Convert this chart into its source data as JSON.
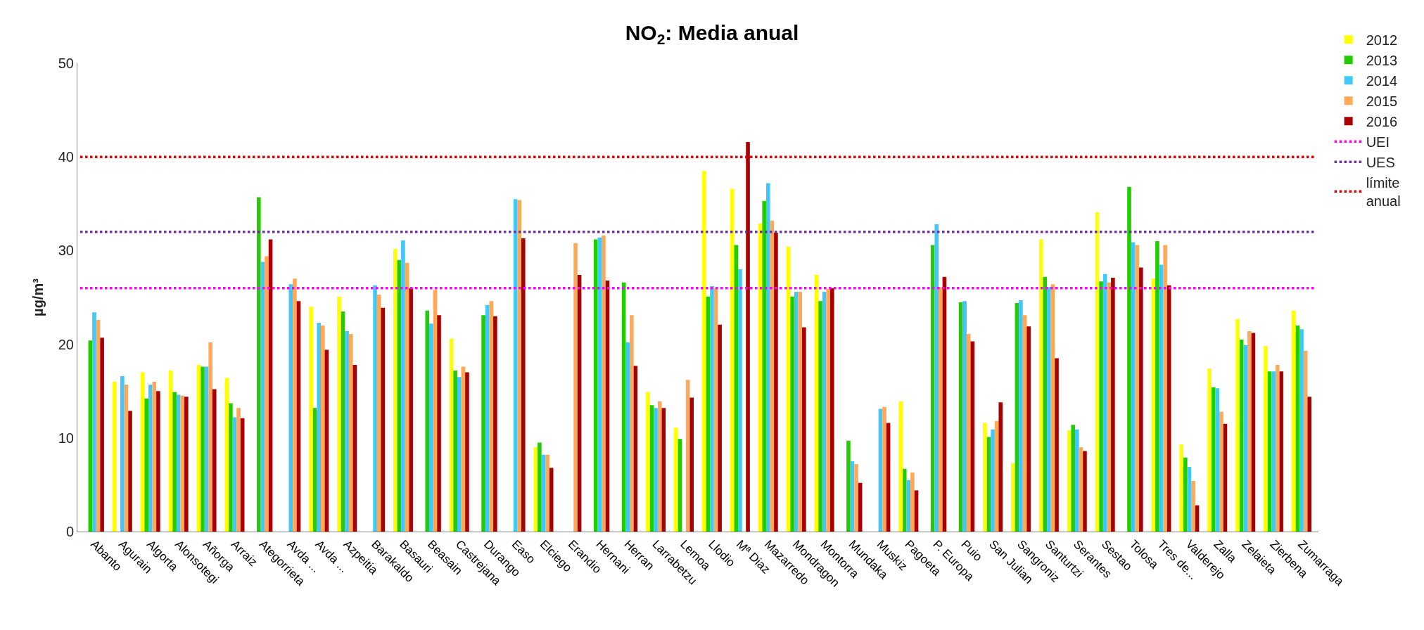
{
  "chart_data": {
    "type": "bar",
    "title": "NO$_{2}$: Media anual",
    "ylabel": "µg/m³",
    "categories": [
      "Abanto",
      "Agurain",
      "Algorta",
      "Alonsotegi",
      "Añorga",
      "Arraiz",
      "Ategorrieta",
      "Avda ...",
      "Avda ...",
      "Azpeitia",
      "Barakaldo",
      "Basauri",
      "Beasain",
      "Castrejana",
      "Durango",
      "Easo",
      "Elciego",
      "Erandio",
      "Hernani",
      "Herran",
      "Larrabetzu",
      "Lemoa",
      "Llodio",
      "Mª Diaz",
      "Mazarredo",
      "Mondragon",
      "Montorra",
      "Mundaka",
      "Muskiz",
      "Pagoeta",
      "P. Europa",
      "Puio",
      "San Julian",
      "Sangroniz",
      "Santurtzi",
      "Serantes",
      "Sestao",
      "Tolosa",
      "Tres de...",
      "Valderejo",
      "Zalla",
      "Zelaieta",
      "Zierbena",
      "Zumarraga"
    ],
    "series": [
      {
        "name": "2012",
        "color": "#ffff00",
        "values": [
          null,
          16.0,
          17.0,
          17.2,
          17.8,
          16.4,
          null,
          null,
          24.0,
          25.1,
          null,
          30.2,
          null,
          20.6,
          null,
          null,
          9.0,
          null,
          null,
          null,
          14.9,
          11.1,
          38.5,
          36.6,
          32.9,
          30.4,
          27.4,
          null,
          null,
          13.9,
          null,
          null,
          11.6,
          7.3,
          31.2,
          10.8,
          34.1,
          null,
          27.0,
          9.3,
          17.4,
          22.7,
          19.8,
          23.6
        ]
      },
      {
        "name": "2013",
        "color": "#22cc00",
        "values": [
          20.4,
          null,
          14.2,
          14.9,
          17.6,
          13.7,
          35.7,
          null,
          13.2,
          23.5,
          null,
          29.0,
          23.6,
          17.2,
          23.1,
          null,
          9.5,
          null,
          31.2,
          26.6,
          13.5,
          9.9,
          25.1,
          30.6,
          35.3,
          25.1,
          24.6,
          9.7,
          null,
          6.7,
          30.6,
          24.5,
          10.1,
          24.4,
          27.2,
          11.4,
          26.7,
          36.8,
          31.0,
          7.9,
          15.4,
          20.5,
          17.1,
          22.0
        ]
      },
      {
        "name": "2014",
        "color": "#40c8f8",
        "values": [
          23.4,
          16.6,
          15.7,
          14.6,
          17.6,
          12.2,
          28.8,
          26.4,
          22.3,
          21.4,
          26.3,
          31.1,
          22.2,
          16.5,
          24.2,
          35.5,
          8.2,
          null,
          31.4,
          20.2,
          13.2,
          null,
          26.2,
          28.0,
          37.2,
          25.6,
          25.6,
          7.5,
          13.1,
          5.5,
          32.8,
          24.6,
          10.9,
          24.7,
          26.1,
          10.9,
          27.5,
          30.9,
          28.5,
          6.9,
          15.3,
          19.9,
          17.1,
          21.6
        ]
      },
      {
        "name": "2015",
        "color": "#ffa858",
        "values": [
          22.6,
          15.7,
          16.0,
          14.5,
          20.2,
          13.2,
          29.4,
          27.0,
          22.0,
          21.1,
          25.3,
          28.7,
          25.8,
          17.6,
          24.6,
          35.4,
          8.2,
          30.8,
          31.6,
          23.1,
          13.9,
          16.2,
          26.0,
          null,
          33.2,
          25.6,
          25.9,
          7.2,
          13.3,
          6.3,
          26.1,
          21.1,
          11.8,
          23.1,
          26.4,
          9.0,
          26.6,
          30.6,
          30.6,
          5.4,
          12.8,
          21.4,
          17.8,
          19.3
        ]
      },
      {
        "name": "2016",
        "color": "#a80000",
        "values": [
          20.7,
          12.9,
          15.0,
          14.4,
          15.2,
          12.1,
          31.2,
          24.6,
          19.4,
          17.8,
          23.9,
          26.0,
          23.1,
          17.0,
          23.0,
          31.3,
          6.8,
          27.4,
          26.8,
          17.7,
          13.2,
          14.3,
          22.1,
          41.6,
          31.9,
          21.8,
          26.0,
          5.2,
          11.6,
          4.4,
          27.2,
          20.3,
          13.8,
          21.9,
          18.5,
          8.6,
          27.1,
          28.2,
          26.3,
          2.8,
          11.5,
          21.2,
          17.1,
          14.4
        ]
      }
    ],
    "ref_lines": [
      {
        "axis": "y",
        "value": 26,
        "label": "UEI",
        "color": "#ff00ff",
        "line_style": "dotted"
      },
      {
        "axis": "y",
        "value": 32,
        "label": "UES",
        "color": "#7030a0",
        "line_style": "dotted"
      },
      {
        "axis": "y",
        "value": 40,
        "label": "límite anual",
        "color": "#e00000",
        "line_style": "dotted"
      }
    ],
    "ylim": [
      0,
      50
    ],
    "yticks": [
      0,
      10,
      20,
      30,
      40,
      50
    ],
    "legend": "right"
  }
}
